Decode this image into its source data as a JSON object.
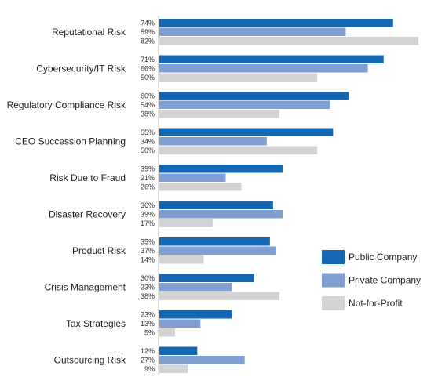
{
  "chart_data": {
    "type": "bar",
    "orientation": "horizontal",
    "title": "",
    "xlabel": "",
    "ylabel": "",
    "xlim": [
      0,
      82
    ],
    "grid": false,
    "legend_position": "right",
    "categories": [
      "Reputational Risk",
      "Cybersecurity/IT Risk",
      "Regulatory Compliance Risk",
      "CEO Succession Planning",
      "Risk Due to Fraud",
      "Disaster Recovery",
      "Product Risk",
      "Crisis Management",
      "Tax Strategies",
      "Outsourcing Risk"
    ],
    "series": [
      {
        "name": "Public Company",
        "color": "#1468b3",
        "values": [
          74,
          71,
          60,
          55,
          39,
          36,
          35,
          30,
          23,
          12
        ]
      },
      {
        "name": "Private Company",
        "color": "#7f9fd3",
        "values": [
          59,
          66,
          54,
          34,
          21,
          39,
          37,
          23,
          13,
          27
        ]
      },
      {
        "name": "Not-for-Profit",
        "color": "#d3d3d3",
        "values": [
          82,
          50,
          38,
          50,
          26,
          17,
          14,
          38,
          5,
          9
        ]
      }
    ],
    "value_suffix": "%"
  }
}
